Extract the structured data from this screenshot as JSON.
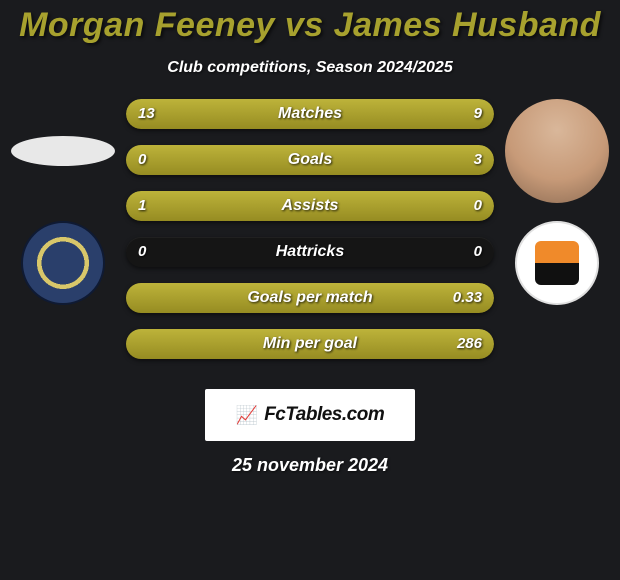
{
  "title": "Morgan Feeney vs James Husband",
  "subtitle": "Club competitions, Season 2024/2025",
  "date": "25 november 2024",
  "watermark": {
    "text": "FcTables.com",
    "icon": "📈"
  },
  "colors": {
    "background": "#1a1b1e",
    "title": "#a7a12e",
    "bar_fill_top": "#bdb33a",
    "bar_fill_bottom": "#968c22",
    "bar_track": "#151515",
    "text": "#ffffff",
    "watermark_bg": "#ffffff",
    "watermark_text": "#111111"
  },
  "player_left": {
    "name": "Morgan Feeney",
    "club": "Shrewsbury Town"
  },
  "player_right": {
    "name": "James Husband",
    "club": "Blackpool"
  },
  "bars": [
    {
      "label": "Matches",
      "left": "13",
      "right": "9",
      "left_pct": 59,
      "right_pct": 41
    },
    {
      "label": "Goals",
      "left": "0",
      "right": "3",
      "left_pct": 0,
      "right_pct": 100
    },
    {
      "label": "Assists",
      "left": "1",
      "right": "0",
      "left_pct": 100,
      "right_pct": 0
    },
    {
      "label": "Hattricks",
      "left": "0",
      "right": "0",
      "left_pct": 0,
      "right_pct": 0
    },
    {
      "label": "Goals per match",
      "left": "",
      "right": "0.33",
      "left_pct": 0,
      "right_pct": 100
    },
    {
      "label": "Min per goal",
      "left": "",
      "right": "286",
      "left_pct": 0,
      "right_pct": 100
    }
  ]
}
